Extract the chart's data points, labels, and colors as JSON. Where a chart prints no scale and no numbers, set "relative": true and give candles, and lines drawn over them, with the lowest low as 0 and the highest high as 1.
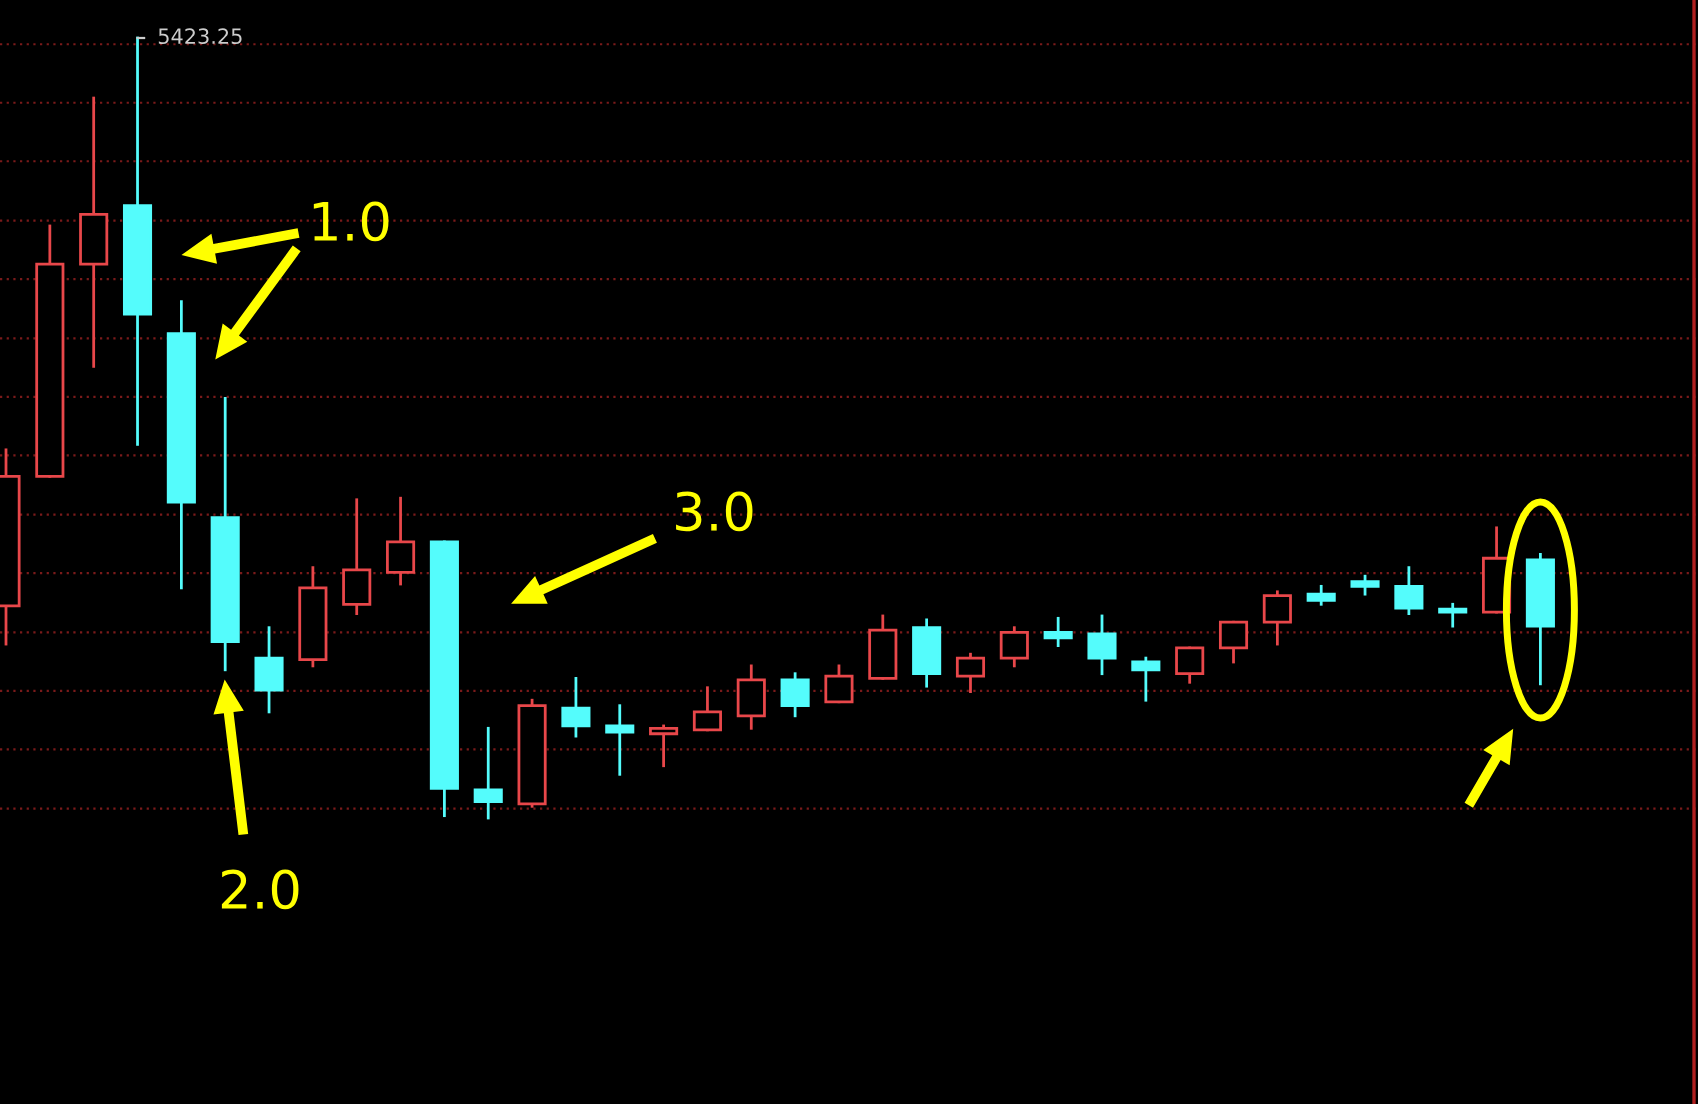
{
  "chart_data": {
    "type": "candlestick",
    "relative": true,
    "categories": [
      null,
      null,
      null,
      null,
      null,
      null,
      null,
      null,
      null,
      null,
      null,
      null,
      null,
      null,
      null,
      null,
      null,
      null,
      null,
      null,
      null,
      null,
      null,
      null,
      null,
      null,
      null,
      null,
      null,
      null,
      null,
      null,
      null,
      null,
      null,
      null
    ],
    "ohlc": [
      [
        0.272,
        0.472,
        0.223,
        0.438
      ],
      [
        0.438,
        0.759,
        0.438,
        0.71
      ],
      [
        0.71,
        0.923,
        0.579,
        0.774
      ],
      [
        0.785,
        1.0,
        0.479,
        0.646
      ],
      [
        0.621,
        0.662,
        0.295,
        0.405
      ],
      [
        0.385,
        0.538,
        0.19,
        0.226
      ],
      [
        0.205,
        0.244,
        0.136,
        0.164
      ],
      [
        0.203,
        0.321,
        0.195,
        0.295
      ],
      [
        0.274,
        0.408,
        0.262,
        0.318
      ],
      [
        0.315,
        0.41,
        0.3,
        0.354
      ],
      [
        0.354,
        0.354,
        0.003,
        0.038
      ],
      [
        0.036,
        0.115,
        0.0,
        0.021
      ],
      [
        0.018,
        0.151,
        0.015,
        0.144
      ],
      [
        0.141,
        0.179,
        0.105,
        0.118
      ],
      [
        0.118,
        0.144,
        0.056,
        0.11
      ],
      [
        0.108,
        0.118,
        0.067,
        0.115
      ],
      [
        0.113,
        0.167,
        0.113,
        0.136
      ],
      [
        0.131,
        0.195,
        0.115,
        0.177
      ],
      [
        0.177,
        0.185,
        0.131,
        0.144
      ],
      [
        0.149,
        0.195,
        0.149,
        0.182
      ],
      [
        0.179,
        0.259,
        0.179,
        0.241
      ],
      [
        0.244,
        0.254,
        0.169,
        0.185
      ],
      [
        0.182,
        0.21,
        0.162,
        0.205
      ],
      [
        0.205,
        0.244,
        0.195,
        0.238
      ],
      [
        0.238,
        0.256,
        0.221,
        0.231
      ],
      [
        0.236,
        0.259,
        0.185,
        0.205
      ],
      [
        0.2,
        0.205,
        0.151,
        0.19
      ],
      [
        0.185,
        0.218,
        0.174,
        0.218
      ],
      [
        0.218,
        0.251,
        0.2,
        0.251
      ],
      [
        0.251,
        0.29,
        0.223,
        0.285
      ],
      [
        0.287,
        0.297,
        0.274,
        0.279
      ],
      [
        0.303,
        0.31,
        0.287,
        0.297
      ],
      [
        0.297,
        0.321,
        0.262,
        0.269
      ],
      [
        0.267,
        0.274,
        0.246,
        0.264
      ],
      [
        0.264,
        0.372,
        0.264,
        0.333
      ],
      [
        0.331,
        0.338,
        0.172,
        0.246
      ]
    ],
    "colors": [
      "#e8474a",
      "#e8474a",
      "#e8474a",
      "#54fcfc",
      "#54fcfc",
      "#54fcfc",
      "#54fcfc",
      "#e8474a",
      "#e8474a",
      "#e8474a",
      "#54fcfc",
      "#54fcfc",
      "#e8474a",
      "#54fcfc",
      "#54fcfc",
      "#e8474a",
      "#e8474a",
      "#e8474a",
      "#54fcfc",
      "#e8474a",
      "#e8474a",
      "#54fcfc",
      "#e8474a",
      "#e8474a",
      "#54fcfc",
      "#54fcfc",
      "#54fcfc",
      "#e8474a",
      "#e8474a",
      "#e8474a",
      "#54fcfc",
      "#54fcfc",
      "#54fcfc",
      "#54fcfc",
      "#e8474a",
      "#54fcfc"
    ],
    "annotations": [
      "5423.25",
      "1.0",
      "2.0",
      "3.0"
    ],
    "ref_lines": [
      {
        "axis": "y",
        "value": 0.992,
        "color": "#7a1a1a",
        "line_style": "dotted"
      },
      {
        "axis": "y",
        "value": 0.917,
        "color": "#7a1a1a",
        "line_style": "dotted"
      },
      {
        "axis": "y",
        "value": 0.842,
        "color": "#7a1a1a",
        "line_style": "dotted"
      },
      {
        "axis": "y",
        "value": 0.766,
        "color": "#7a1a1a",
        "line_style": "dotted"
      },
      {
        "axis": "y",
        "value": 0.691,
        "color": "#7a1a1a",
        "line_style": "dotted"
      },
      {
        "axis": "y",
        "value": 0.615,
        "color": "#7a1a1a",
        "line_style": "dotted"
      },
      {
        "axis": "y",
        "value": 0.54,
        "color": "#7a1a1a",
        "line_style": "dotted"
      },
      {
        "axis": "y",
        "value": 0.465,
        "color": "#7a1a1a",
        "line_style": "dotted"
      },
      {
        "axis": "y",
        "value": 0.389,
        "color": "#7a1a1a",
        "line_style": "dotted"
      },
      {
        "axis": "y",
        "value": 0.314,
        "color": "#7a1a1a",
        "line_style": "dotted"
      },
      {
        "axis": "y",
        "value": 0.238,
        "color": "#7a1a1a",
        "line_style": "dotted"
      },
      {
        "axis": "y",
        "value": 0.163,
        "color": "#7a1a1a",
        "line_style": "dotted"
      },
      {
        "axis": "y",
        "value": 0.088,
        "color": "#7a1a1a",
        "line_style": "dotted"
      },
      {
        "axis": "y",
        "value": 0.012,
        "color": "#7a1a1a",
        "line_style": "dotted"
      }
    ]
  }
}
